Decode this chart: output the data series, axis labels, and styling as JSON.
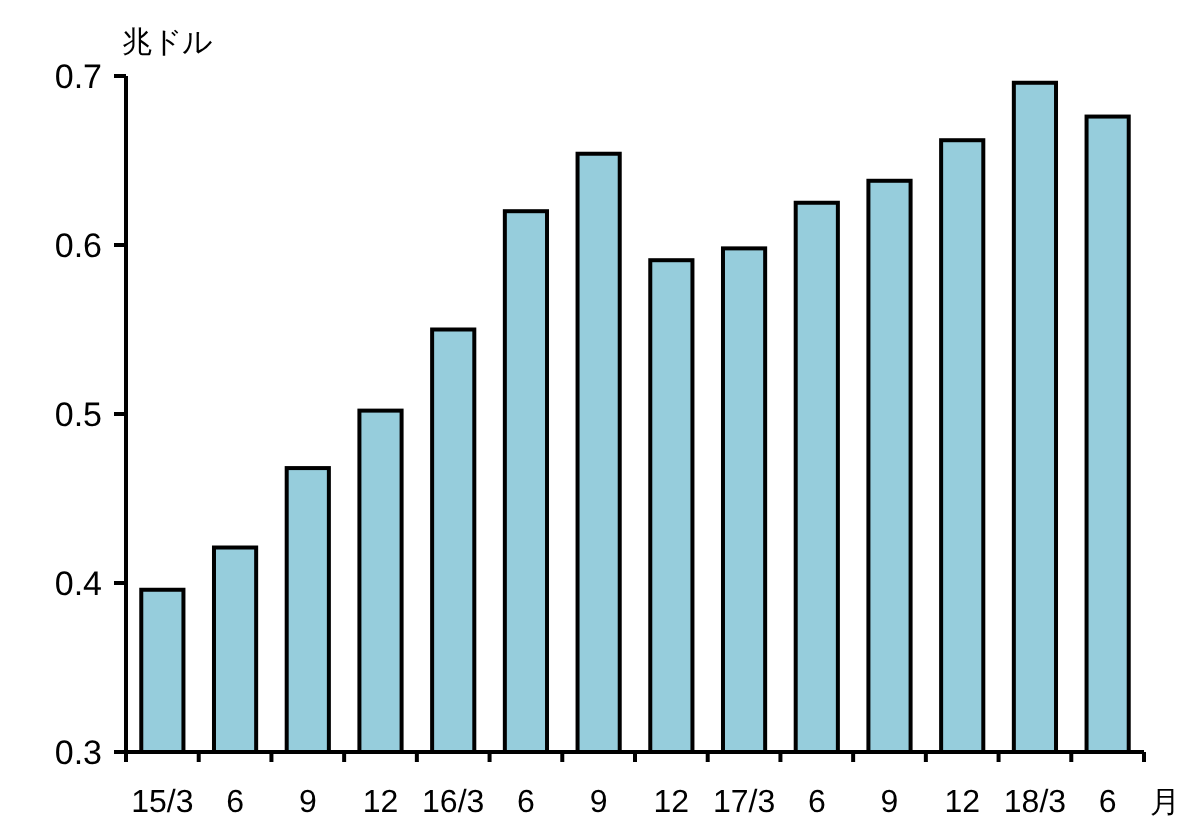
{
  "chart_data": {
    "type": "bar",
    "ylabel": "兆ドル",
    "xlabel": "月",
    "categories": [
      "15/3",
      "6",
      "9",
      "12",
      "16/3",
      "6",
      "9",
      "12",
      "17/3",
      "6",
      "9",
      "12",
      "18/3",
      "6"
    ],
    "values": [
      0.396,
      0.421,
      0.468,
      0.502,
      0.55,
      0.62,
      0.654,
      0.591,
      0.598,
      0.625,
      0.638,
      0.662,
      0.696,
      0.676
    ],
    "color": "#96cddc",
    "ylim": [
      0.3,
      0.7
    ],
    "yticks": [
      0.3,
      0.4,
      0.5,
      0.6,
      0.7
    ],
    "grid": false
  }
}
